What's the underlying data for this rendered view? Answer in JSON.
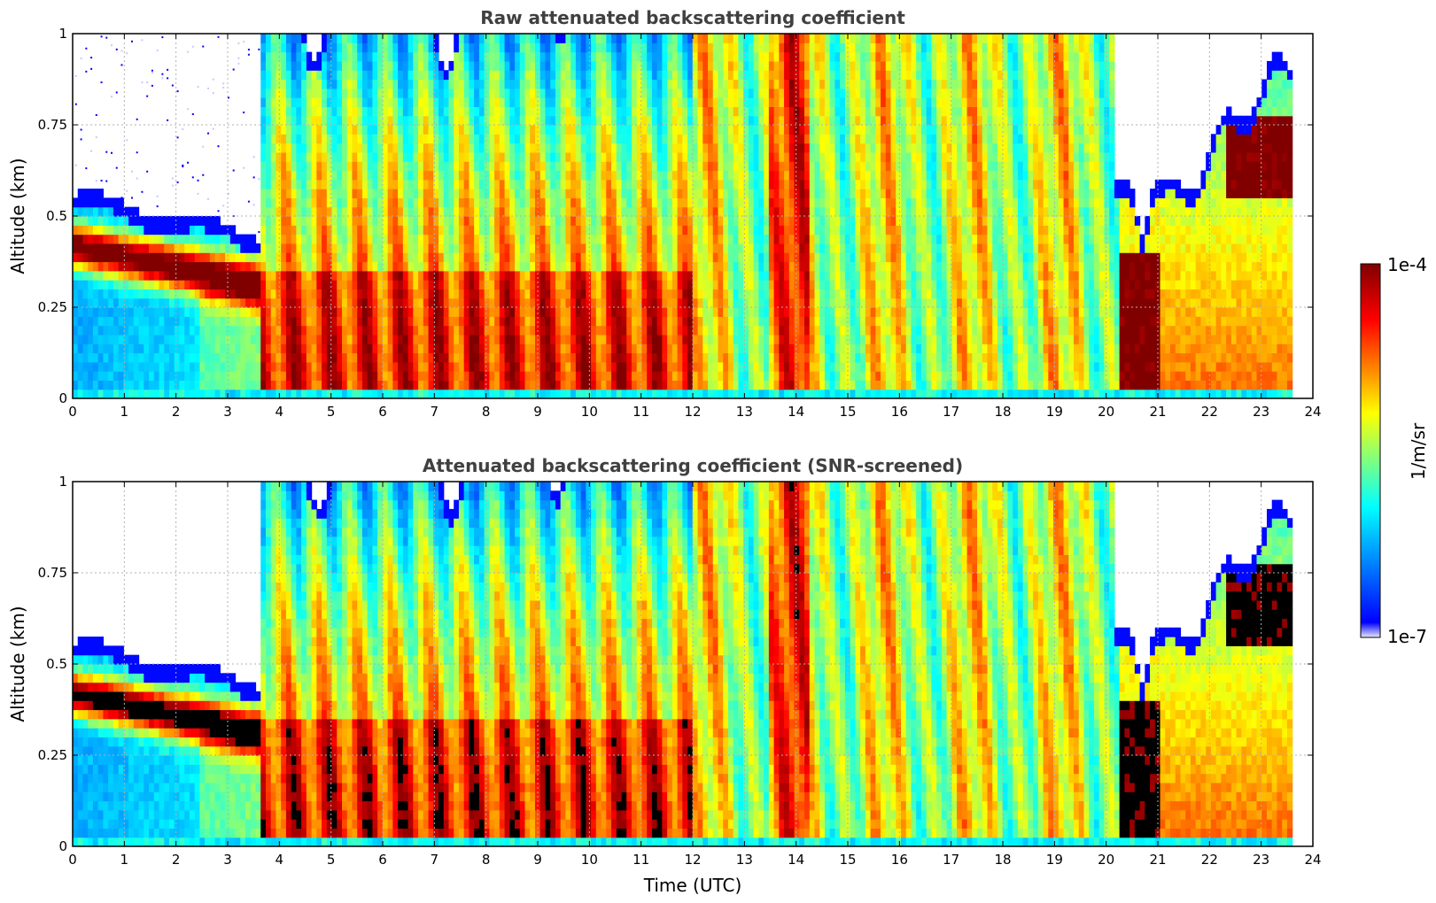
{
  "figure": {
    "xlabel": "Time (UTC)",
    "colorbar": {
      "label": "1/m/sr",
      "max_label": "1e-4",
      "min_label": "1e-7",
      "colormap": [
        "#e8e8ff",
        "#0000ff",
        "#00ffff",
        "#ffff00",
        "#ff0000",
        "#800000"
      ]
    }
  },
  "chart_data": [
    {
      "type": "heatmap",
      "title": "Raw attenuated backscattering coefficient",
      "xlabel": "",
      "ylabel": "Altitude (km)",
      "xlim": [
        0,
        24
      ],
      "ylim": [
        0,
        1
      ],
      "x_ticks": [
        "0",
        "1",
        "2",
        "3",
        "4",
        "5",
        "6",
        "7",
        "8",
        "9",
        "10",
        "11",
        "12",
        "13",
        "14",
        "15",
        "16",
        "17",
        "18",
        "19",
        "20",
        "21",
        "22",
        "23",
        "24"
      ],
      "y_ticks": [
        "0",
        "0.25",
        "0.5",
        "0.75",
        "1"
      ],
      "grid": true,
      "data_end_hour": 23.6,
      "saturated_color": "#800000"
    },
    {
      "type": "heatmap",
      "title": "Attenuated backscattering coefficient (SNR-screened)",
      "xlabel": "Time (UTC)",
      "ylabel": "Altitude (km)",
      "xlim": [
        0,
        24
      ],
      "ylim": [
        0,
        1
      ],
      "x_ticks": [
        "0",
        "1",
        "2",
        "3",
        "4",
        "5",
        "6",
        "7",
        "8",
        "9",
        "10",
        "11",
        "12",
        "13",
        "14",
        "15",
        "16",
        "17",
        "18",
        "19",
        "20",
        "21",
        "22",
        "23",
        "24"
      ],
      "y_ticks": [
        "0",
        "0.25",
        "0.5",
        "0.75",
        "1"
      ],
      "grid": true,
      "data_end_hour": 23.6,
      "saturated_color": "#000000"
    }
  ]
}
